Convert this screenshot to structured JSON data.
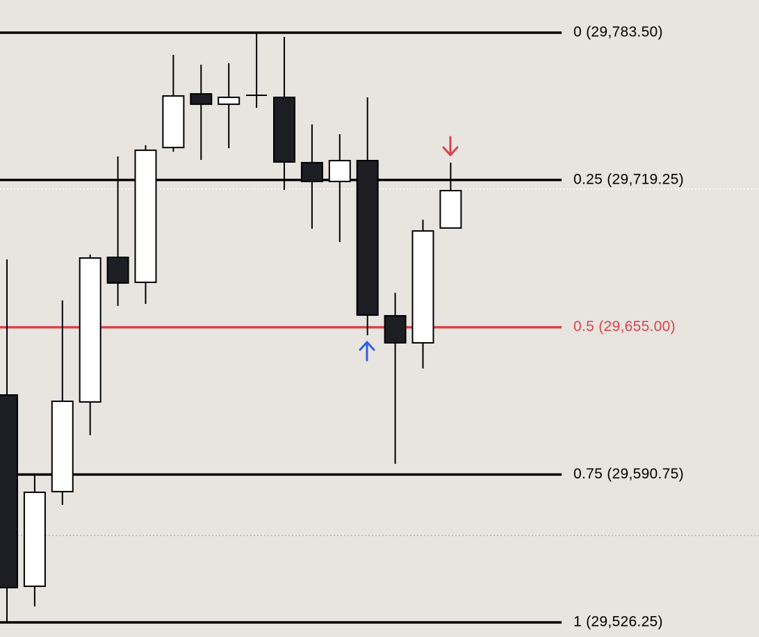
{
  "chart_data": {
    "type": "candlestick",
    "open": [
      29625.45,
      29542.0,
      29583.3,
      29622.4,
      29685.5,
      29674.6,
      29733.4,
      29756.8,
      29752.3,
      29756.2,
      29755.3,
      29726.8,
      29718.6,
      29727.7,
      29660.0,
      29648.2,
      29698.3
    ],
    "high": [
      29684.6,
      29590.6,
      29666.7,
      29686.7,
      29729.5,
      29734.4,
      29773.8,
      29769.5,
      29770.2,
      29783.5,
      29781.7,
      29743.5,
      29739.2,
      29755.3,
      29670.0,
      29701.9,
      29726.8
    ],
    "low": [
      29526.25,
      29533.2,
      29577.5,
      29607.9,
      29664.3,
      29665.2,
      29731.6,
      29728.0,
      29733.1,
      29750.7,
      29714.9,
      29698.0,
      29692.2,
      29651.5,
      29595.4,
      29637.0,
      29698.3
    ],
    "close": [
      29541.4,
      29583.0,
      29622.7,
      29685.2,
      29674.3,
      29732.2,
      29755.9,
      29752.3,
      29755.3,
      29756.2,
      29727.1,
      29718.6,
      29727.7,
      29660.3,
      29648.2,
      29697.0,
      29714.6
    ],
    "up_color": "#ffffff",
    "down_color": "#1c1e24",
    "ylim": [
      29519.87,
      29797.76
    ],
    "levels": [
      {
        "value": 29783.5,
        "label": "0 (29,783.50)",
        "color": "#000000"
      },
      {
        "value": 29719.25,
        "label": "0.25 (29,719.25)",
        "color": "#000000"
      },
      {
        "value": 29655.0,
        "label": "0.5 (29,655.00)",
        "color": "#d9434b"
      },
      {
        "value": 29590.75,
        "label": "0.75 (29,590.75)",
        "color": "#000000"
      },
      {
        "value": 29526.25,
        "label": "1 (29,526.25)",
        "color": "#000000"
      }
    ]
  }
}
